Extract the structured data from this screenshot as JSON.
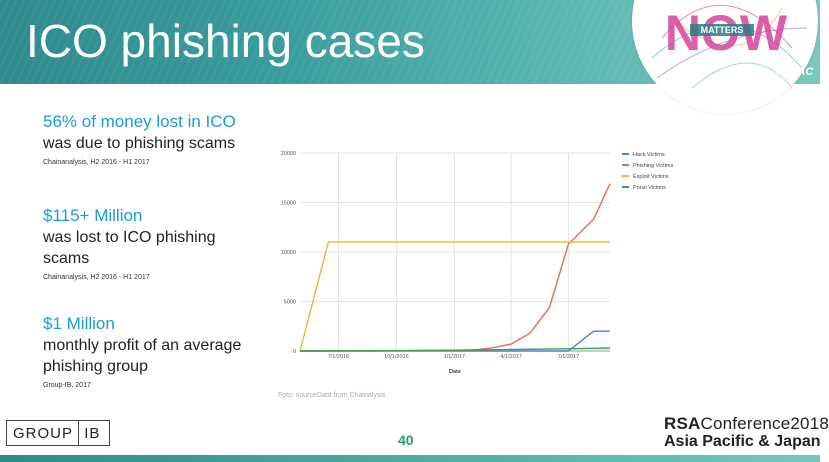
{
  "slide": {
    "title": "ICO phishing cases",
    "hashtag": "#RSAC",
    "badge_word": "NOW",
    "badge_sub": "MATTERS",
    "page_number": "40"
  },
  "facts": [
    {
      "headline": "56% of money lost in ICO",
      "text": "was due to phishing scams",
      "source": "Chainanalysis, H2 2016 - H1 2017"
    },
    {
      "headline": "$115+ Million",
      "text": "was lost to ICO phishing scams",
      "source": "Chainanalysis, H2 2016 - H1 2017"
    },
    {
      "headline": "$1 Million",
      "text": "monthly profit of an average phishing group",
      "source": "Group-IB, 2017"
    }
  ],
  "chart_caption": "Foto: sourceData from Chainalysis",
  "logos": {
    "left_a": "GROUP",
    "left_b": "IB",
    "rsa_a": "RSA",
    "rsa_b": "Conference2018",
    "rsa_c": "Asia Pacific & Japan"
  },
  "colors": {
    "banner": "#3a9c9c",
    "accent": "#1c9bd7",
    "page_number": "#2a9a6c"
  },
  "chart_data": {
    "type": "line",
    "title": "",
    "xlabel": "Date",
    "ylabel": "",
    "ylim": [
      0,
      20000
    ],
    "yticks": [
      0,
      5000,
      10000,
      15000,
      20000
    ],
    "xticks": [
      "7/1/2016",
      "10/1/2016",
      "1/1/2017",
      "4/1/2017",
      "7/1/2017"
    ],
    "xrange": [
      "2016-05-01",
      "2017-09-05"
    ],
    "grid": true,
    "legend": "top-right",
    "series": [
      {
        "name": "Hack Victims",
        "color": "#4a7fd6",
        "points": [
          [
            "2016-05-01",
            0
          ],
          [
            "2016-06-01",
            0
          ],
          [
            "2016-09-01",
            0
          ],
          [
            "2017-01-01",
            0
          ],
          [
            "2017-04-01",
            0
          ],
          [
            "2017-07-01",
            0
          ],
          [
            "2017-08-10",
            2000
          ],
          [
            "2017-09-05",
            2000
          ]
        ]
      },
      {
        "name": "Phishing Victims",
        "color": "#e2704f",
        "points": [
          [
            "2016-05-01",
            0
          ],
          [
            "2016-06-01",
            0
          ],
          [
            "2016-09-01",
            0
          ],
          [
            "2016-12-01",
            50
          ],
          [
            "2017-02-01",
            100
          ],
          [
            "2017-03-01",
            300
          ],
          [
            "2017-04-01",
            700
          ],
          [
            "2017-05-01",
            1800
          ],
          [
            "2017-06-01",
            4400
          ],
          [
            "2017-07-01",
            10800
          ],
          [
            "2017-08-10",
            13300
          ],
          [
            "2017-09-05",
            16900
          ]
        ]
      },
      {
        "name": "Exploit Victims",
        "color": "#f0b435",
        "points": [
          [
            "2016-05-01",
            0
          ],
          [
            "2016-06-15",
            11000
          ],
          [
            "2017-01-01",
            11000
          ],
          [
            "2017-06-01",
            11000
          ],
          [
            "2017-09-05",
            11000
          ]
        ]
      },
      {
        "name": "Ponzi Victims",
        "color": "#3fa34d",
        "points": [
          [
            "2016-05-01",
            0
          ],
          [
            "2016-09-01",
            30
          ],
          [
            "2017-01-01",
            80
          ],
          [
            "2017-04-01",
            150
          ],
          [
            "2017-07-01",
            220
          ],
          [
            "2017-09-05",
            300
          ]
        ]
      }
    ]
  }
}
